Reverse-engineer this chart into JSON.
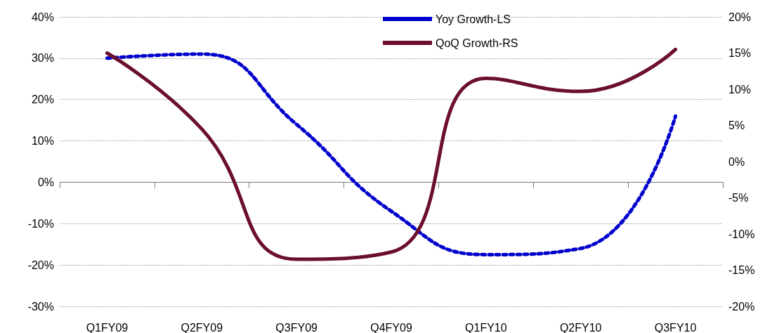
{
  "chart_data": {
    "type": "line",
    "categories": [
      "Q1FY09",
      "Q2FY09",
      "Q3FY09",
      "Q4FY09",
      "Q1FY10",
      "Q2FY10",
      "Q3FY10"
    ],
    "series": [
      {
        "name": "Yoy Growth-LS",
        "color": "#0000cc",
        "line_style": "dotted",
        "values": [
          30,
          31,
          14,
          -7,
          -17.5,
          -16,
          16
        ]
      },
      {
        "name": "QoQ Growth-RS",
        "color": "#6b0f2a",
        "line_style": "solid",
        "axis": "y2",
        "values": [
          15,
          4.5,
          -13.5,
          -12.5,
          11.5,
          9.7,
          15.5
        ]
      }
    ],
    "ylim": [
      -30,
      40
    ],
    "yticks": [
      {
        "value": -30,
        "label": "-30%"
      },
      {
        "value": -20,
        "label": "-20%"
      },
      {
        "value": -10,
        "label": "-10%"
      },
      {
        "value": 0,
        "label": "0%"
      },
      {
        "value": 10,
        "label": "10%"
      },
      {
        "value": 20,
        "label": "20%"
      },
      {
        "value": 30,
        "label": "30%"
      },
      {
        "value": 40,
        "label": "40%"
      }
    ],
    "y2lim": [
      -20,
      20
    ],
    "y2ticks": [
      {
        "value": -20,
        "label": "-20%"
      },
      {
        "value": -15,
        "label": "-15%"
      },
      {
        "value": -10,
        "label": "-10%"
      },
      {
        "value": -5,
        "label": "-5%"
      },
      {
        "value": 0,
        "label": "0%"
      },
      {
        "value": 5,
        "label": "5%"
      },
      {
        "value": 10,
        "label": "10%"
      },
      {
        "value": 15,
        "label": "15%"
      },
      {
        "value": 20,
        "label": "20%"
      }
    ],
    "grid": "y",
    "legend": "top",
    "marker": "none"
  }
}
